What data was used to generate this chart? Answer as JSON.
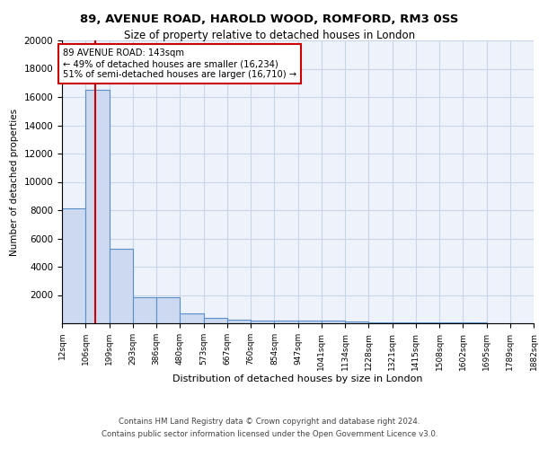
{
  "title1": "89, AVENUE ROAD, HAROLD WOOD, ROMFORD, RM3 0SS",
  "title2": "Size of property relative to detached houses in London",
  "xlabel": "Distribution of detached houses by size in London",
  "ylabel": "Number of detached properties",
  "bar_edges": [
    12,
    106,
    199,
    293,
    386,
    480,
    573,
    667,
    760,
    854,
    947,
    1041,
    1134,
    1228,
    1321,
    1415,
    1508,
    1602,
    1695,
    1789,
    1882
  ],
  "bar_heights": [
    8100,
    16500,
    5300,
    1850,
    1850,
    700,
    350,
    230,
    210,
    185,
    175,
    165,
    155,
    80,
    60,
    50,
    40,
    35,
    30,
    25
  ],
  "bar_color": "#ccd9f0",
  "bar_edge_color": "#5b8fc9",
  "property_line_x": 143,
  "annotation_title": "89 AVENUE ROAD: 143sqm",
  "annotation_line1": "← 49% of detached houses are smaller (16,234)",
  "annotation_line2": "51% of semi-detached houses are larger (16,710) →",
  "annotation_box_color": "#ffffff",
  "annotation_box_edge_color": "#cc0000",
  "red_line_color": "#cc0000",
  "grid_color": "#c8d4e8",
  "background_color": "#eef2fa",
  "footer1": "Contains HM Land Registry data © Crown copyright and database right 2024.",
  "footer2": "Contains public sector information licensed under the Open Government Licence v3.0.",
  "ylim": [
    0,
    20000
  ],
  "yticks": [
    0,
    2000,
    4000,
    6000,
    8000,
    10000,
    12000,
    14000,
    16000,
    18000,
    20000
  ]
}
